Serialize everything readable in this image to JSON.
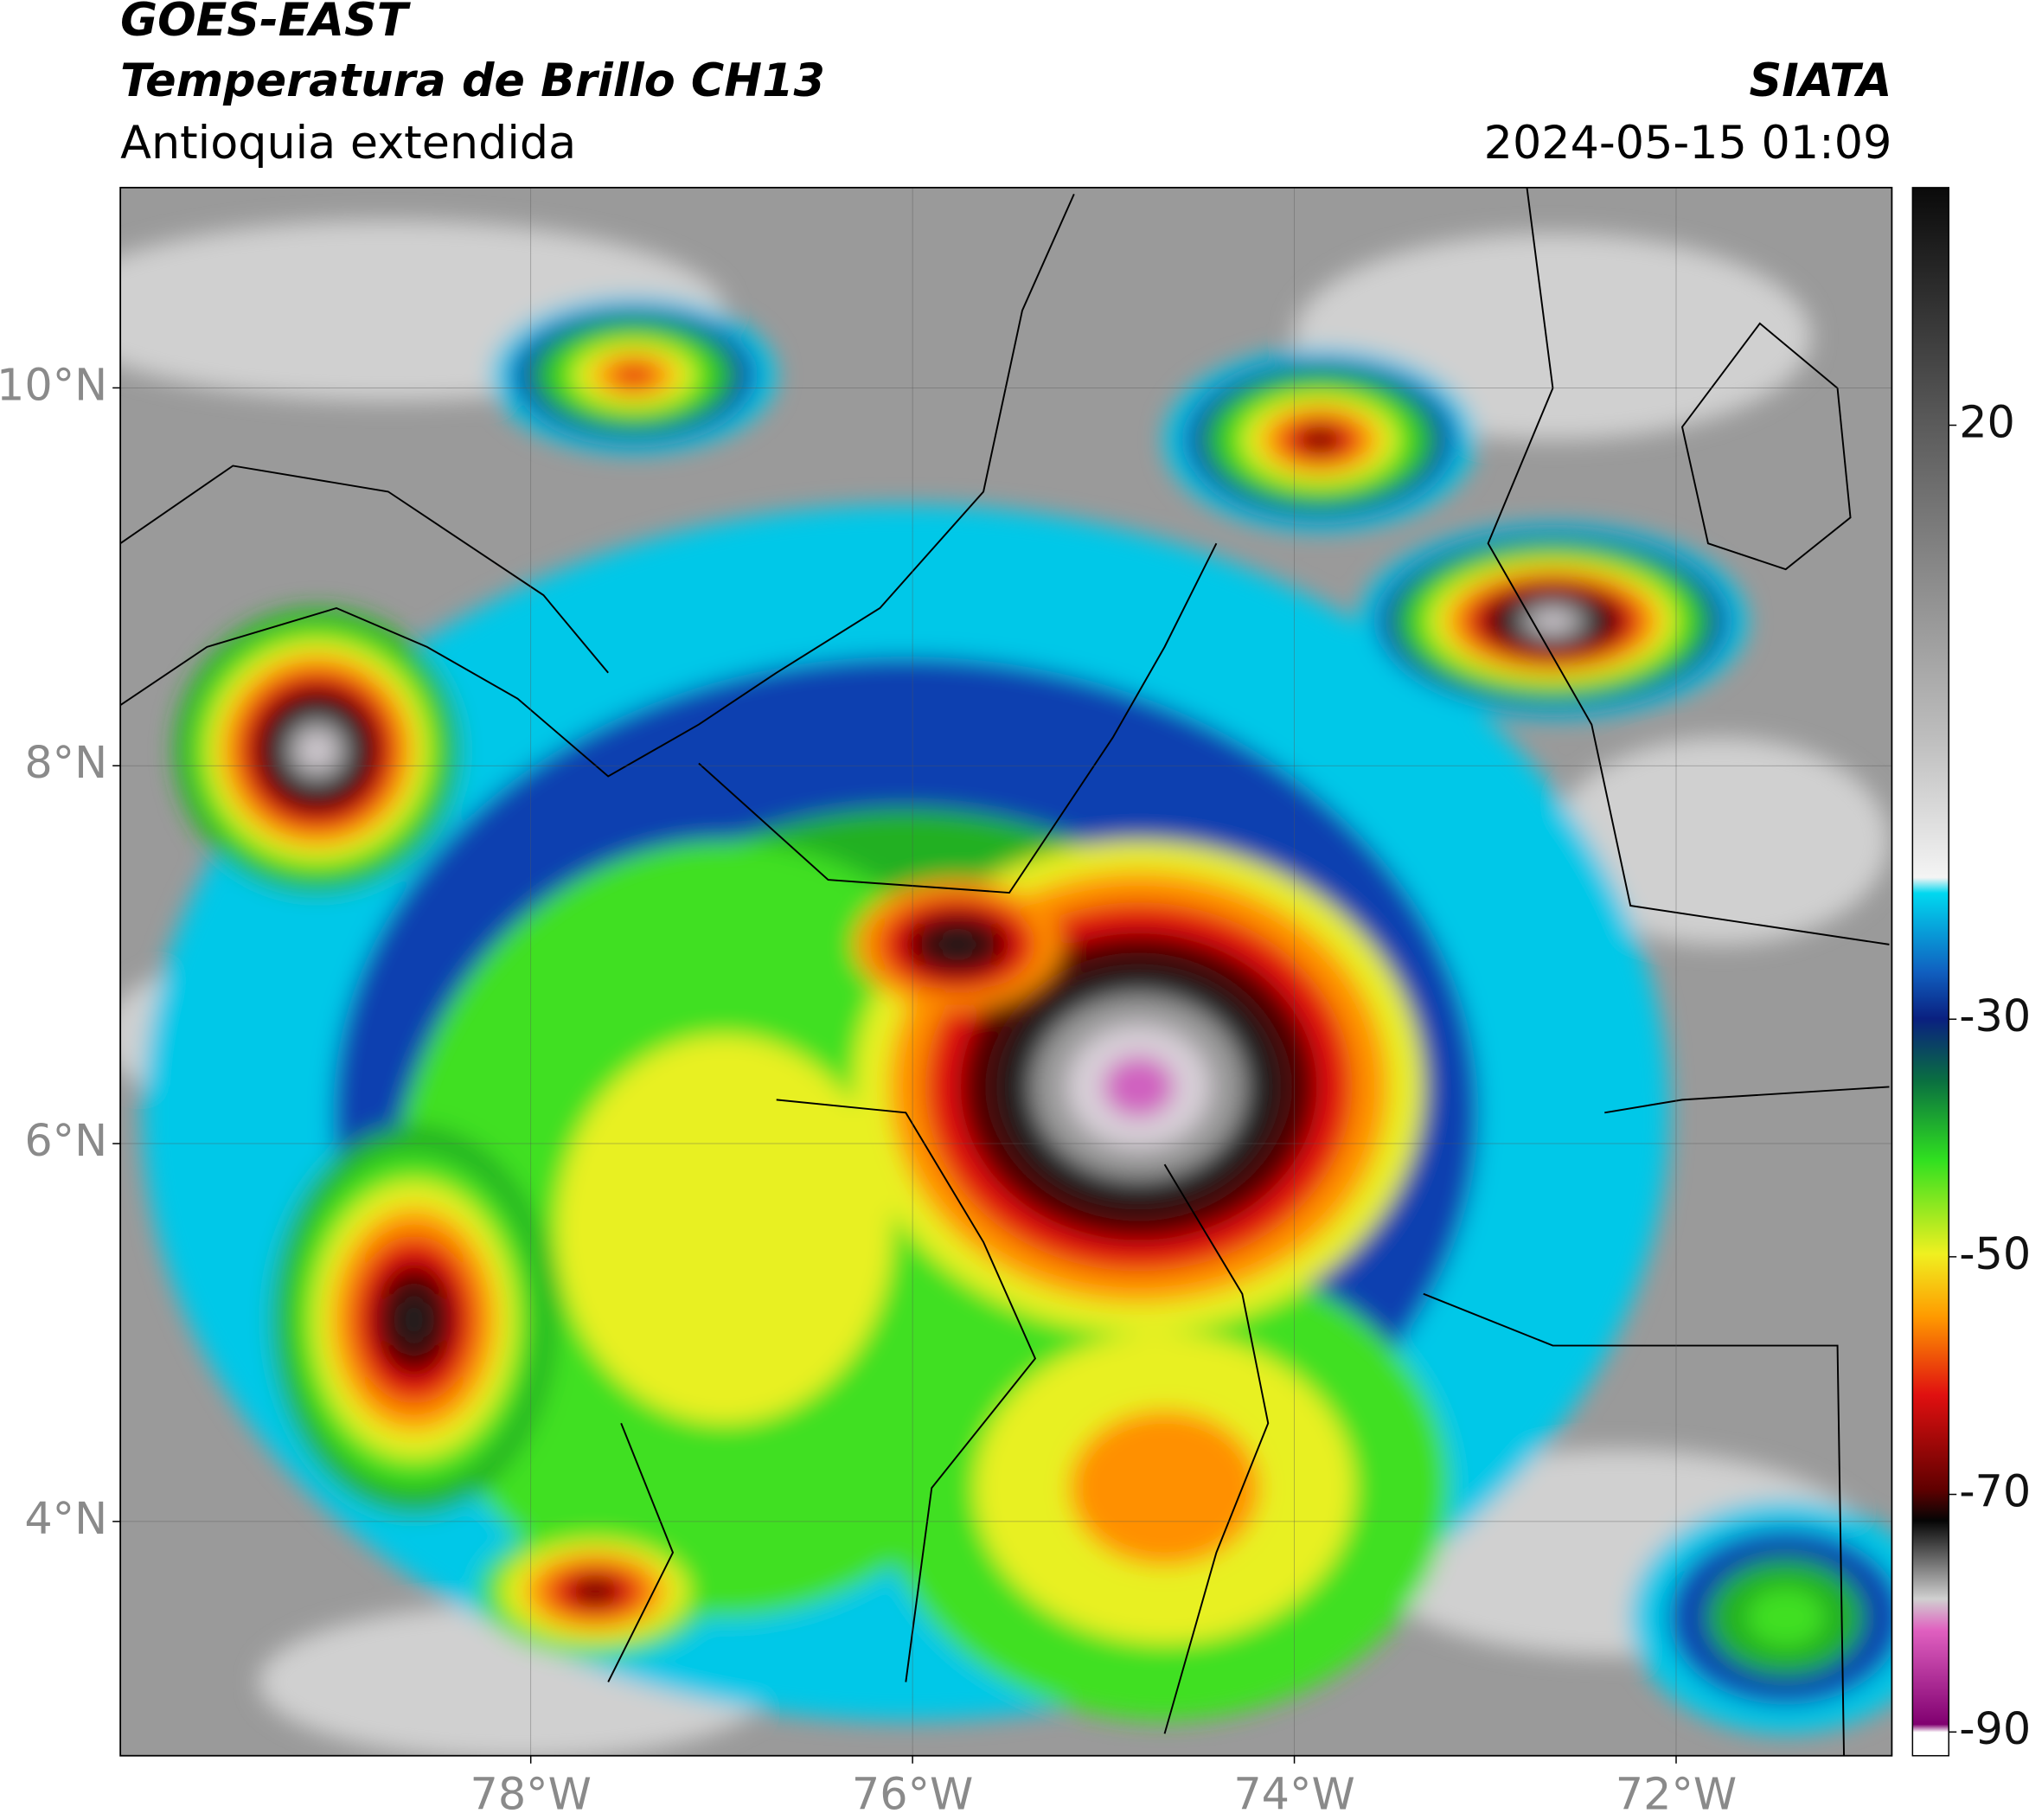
{
  "header": {
    "line1": "GOES-EAST",
    "line2": "Temperatura de Brillo CH13",
    "line3": "Antioquia extendida",
    "source": "SIATA",
    "datetime": "2024-05-15 01:09"
  },
  "map": {
    "xlim": [
      -80.15,
      -70.87
    ],
    "ylim": [
      2.76,
      11.06
    ],
    "xticks": [
      {
        "value": -78,
        "label": "78°W"
      },
      {
        "value": -76,
        "label": "76°W"
      },
      {
        "value": -74,
        "label": "74°W"
      },
      {
        "value": -72,
        "label": "72°W"
      }
    ],
    "yticks": [
      {
        "value": 4,
        "label": "4°N"
      },
      {
        "value": 6,
        "label": "6°N"
      },
      {
        "value": 8,
        "label": "8°N"
      },
      {
        "value": 10,
        "label": "10°N"
      }
    ],
    "grid": true
  },
  "colorbar": {
    "lim": [
      -92,
      40
    ],
    "ticks": [
      20,
      -30,
      -50,
      -70,
      -90
    ]
  }
}
